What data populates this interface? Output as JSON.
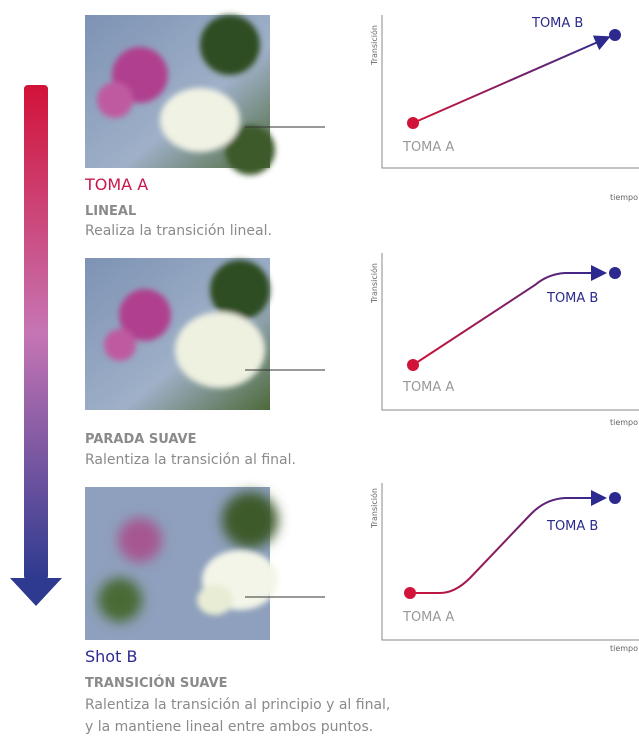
{
  "sections": [
    {
      "photo_caption": "TOMA A",
      "title": "LINEAL",
      "description": [
        "Realiza la transición lineal."
      ],
      "graph": {
        "y_label": "Transición",
        "x_label": "tiempo",
        "start_label": "TOMA A",
        "end_label": "TOMA B"
      }
    },
    {
      "title": "PARADA SUAVE",
      "description": [
        "Ralentiza la transición al final."
      ],
      "graph": {
        "y_label": "Transición",
        "x_label": "tiempo",
        "start_label": "TOMA A",
        "end_label": "TOMA B"
      }
    },
    {
      "photo_caption": "Shot B",
      "title": "TRANSICIÓN SUAVE",
      "description": [
        "Ralentiza la transición al principio y al final,",
        "y la mantiene lineal entre ambos puntos."
      ],
      "graph": {
        "y_label": "Transición",
        "x_label": "tiempo",
        "start_label": "TOMA A",
        "end_label": "TOMA B"
      }
    }
  ]
}
